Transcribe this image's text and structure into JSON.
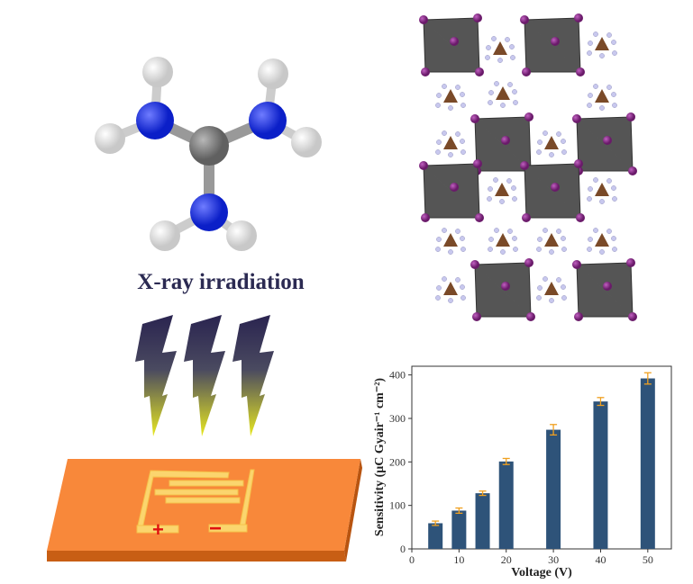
{
  "caption": "X-ray irradiation",
  "device": {
    "positive_label": "+",
    "negative_label": "−"
  },
  "colors": {
    "bar": "#2e5379",
    "error_bar": "#f0a020",
    "substrate": "#f8883a",
    "electrode": "#fbd56e",
    "nitrogen": "#1a2fe0",
    "carbon": "#808080",
    "iodide": "#8a2a8a"
  },
  "chart_data": {
    "type": "bar",
    "xlabel": "Voltage (V)",
    "ylabel": "Sensitivity (μC Gyair⁻¹ cm⁻²)",
    "x": [
      5,
      10,
      15,
      20,
      30,
      40,
      50
    ],
    "values": [
      59,
      88,
      128,
      201,
      274,
      339,
      392
    ],
    "errors": [
      5,
      6,
      5,
      7,
      12,
      9,
      13
    ],
    "xlim": [
      0,
      55
    ],
    "ylim": [
      0,
      420
    ],
    "xticks": [
      "0",
      "10",
      "20",
      "30",
      "40",
      "50"
    ],
    "yticks": [
      "0",
      "100",
      "200",
      "300",
      "400"
    ],
    "grid": false,
    "legend": "none"
  }
}
